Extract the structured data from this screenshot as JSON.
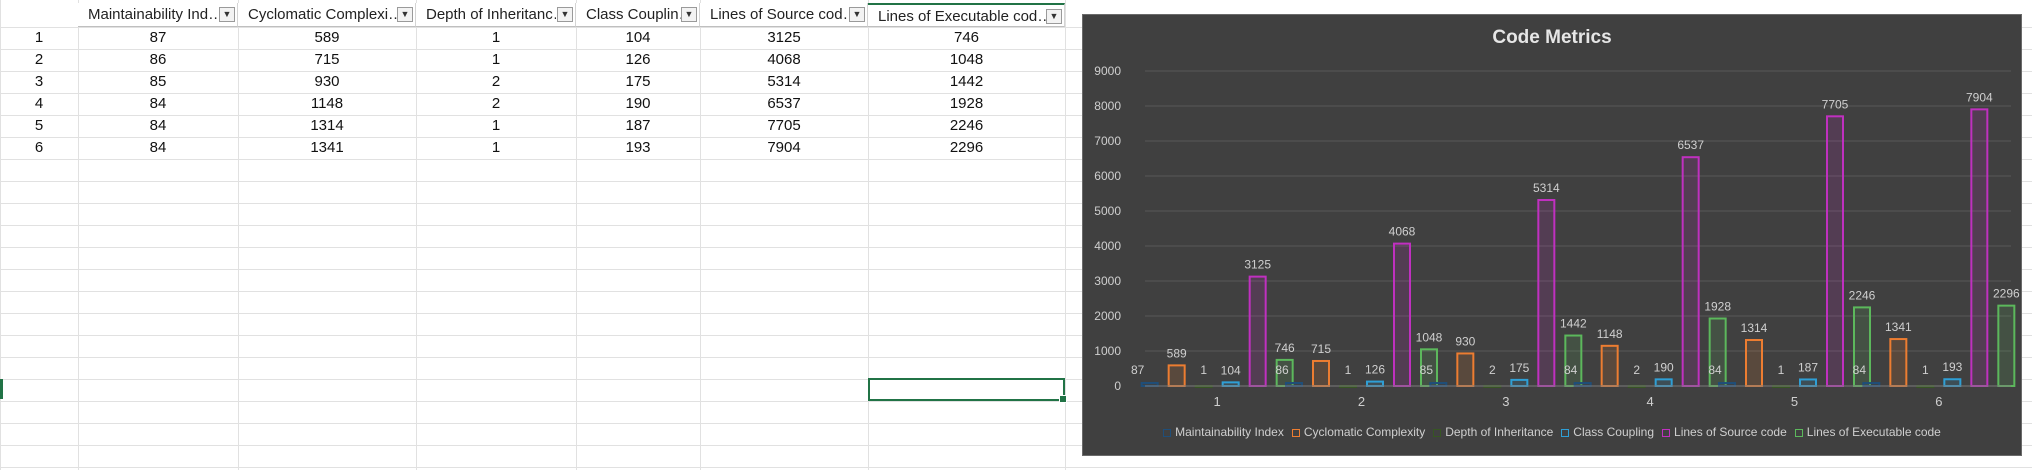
{
  "sheet": {
    "headers": [
      "Maintainability Ind…",
      "Cyclomatic Complexi…",
      "Depth of Inheritanc…",
      "Class Couplin…",
      "Lines of Source cod…",
      "Lines of Executable cod…"
    ],
    "rows": [
      {
        "id": "1",
        "cells": [
          "87",
          "589",
          "1",
          "104",
          "3125",
          "746"
        ]
      },
      {
        "id": "2",
        "cells": [
          "86",
          "715",
          "1",
          "126",
          "4068",
          "1048"
        ]
      },
      {
        "id": "3",
        "cells": [
          "85",
          "930",
          "2",
          "175",
          "5314",
          "1442"
        ]
      },
      {
        "id": "4",
        "cells": [
          "84",
          "1148",
          "2",
          "190",
          "6537",
          "1928"
        ]
      },
      {
        "id": "5",
        "cells": [
          "84",
          "1314",
          "1",
          "187",
          "7705",
          "2246"
        ]
      },
      {
        "id": "6",
        "cells": [
          "84",
          "1341",
          "1",
          "193",
          "7904",
          "2296"
        ]
      }
    ],
    "filter_icon": "dropdown-arrow-icon"
  },
  "chart_data": {
    "type": "bar",
    "title": "Code Metrics",
    "categories": [
      "1",
      "2",
      "3",
      "4",
      "5",
      "6"
    ],
    "ylim": [
      0,
      9000
    ],
    "yticks": [
      0,
      1000,
      2000,
      3000,
      4000,
      5000,
      6000,
      7000,
      8000,
      9000
    ],
    "grid": true,
    "legend_position": "bottom",
    "series": [
      {
        "name": "Maintainability Index",
        "color": "#1f4e79",
        "values": [
          87,
          86,
          85,
          84,
          84,
          84
        ]
      },
      {
        "name": "Cyclomatic Complexity",
        "color": "#ed7d31",
        "values": [
          589,
          715,
          930,
          1148,
          1314,
          1341
        ]
      },
      {
        "name": "Depth of Inheritance",
        "color": "#375623",
        "values": [
          1,
          1,
          2,
          2,
          1,
          1
        ]
      },
      {
        "name": "Class Coupling",
        "color": "#2e9fd6",
        "values": [
          104,
          126,
          175,
          190,
          187,
          193
        ]
      },
      {
        "name": "Lines of Source code",
        "color": "#c030c0",
        "values": [
          3125,
          4068,
          5314,
          6537,
          7705,
          7904
        ]
      },
      {
        "name": "Lines of Executable code",
        "color": "#5cb85c",
        "values": [
          746,
          1048,
          1442,
          1928,
          2246,
          2296
        ]
      }
    ]
  }
}
